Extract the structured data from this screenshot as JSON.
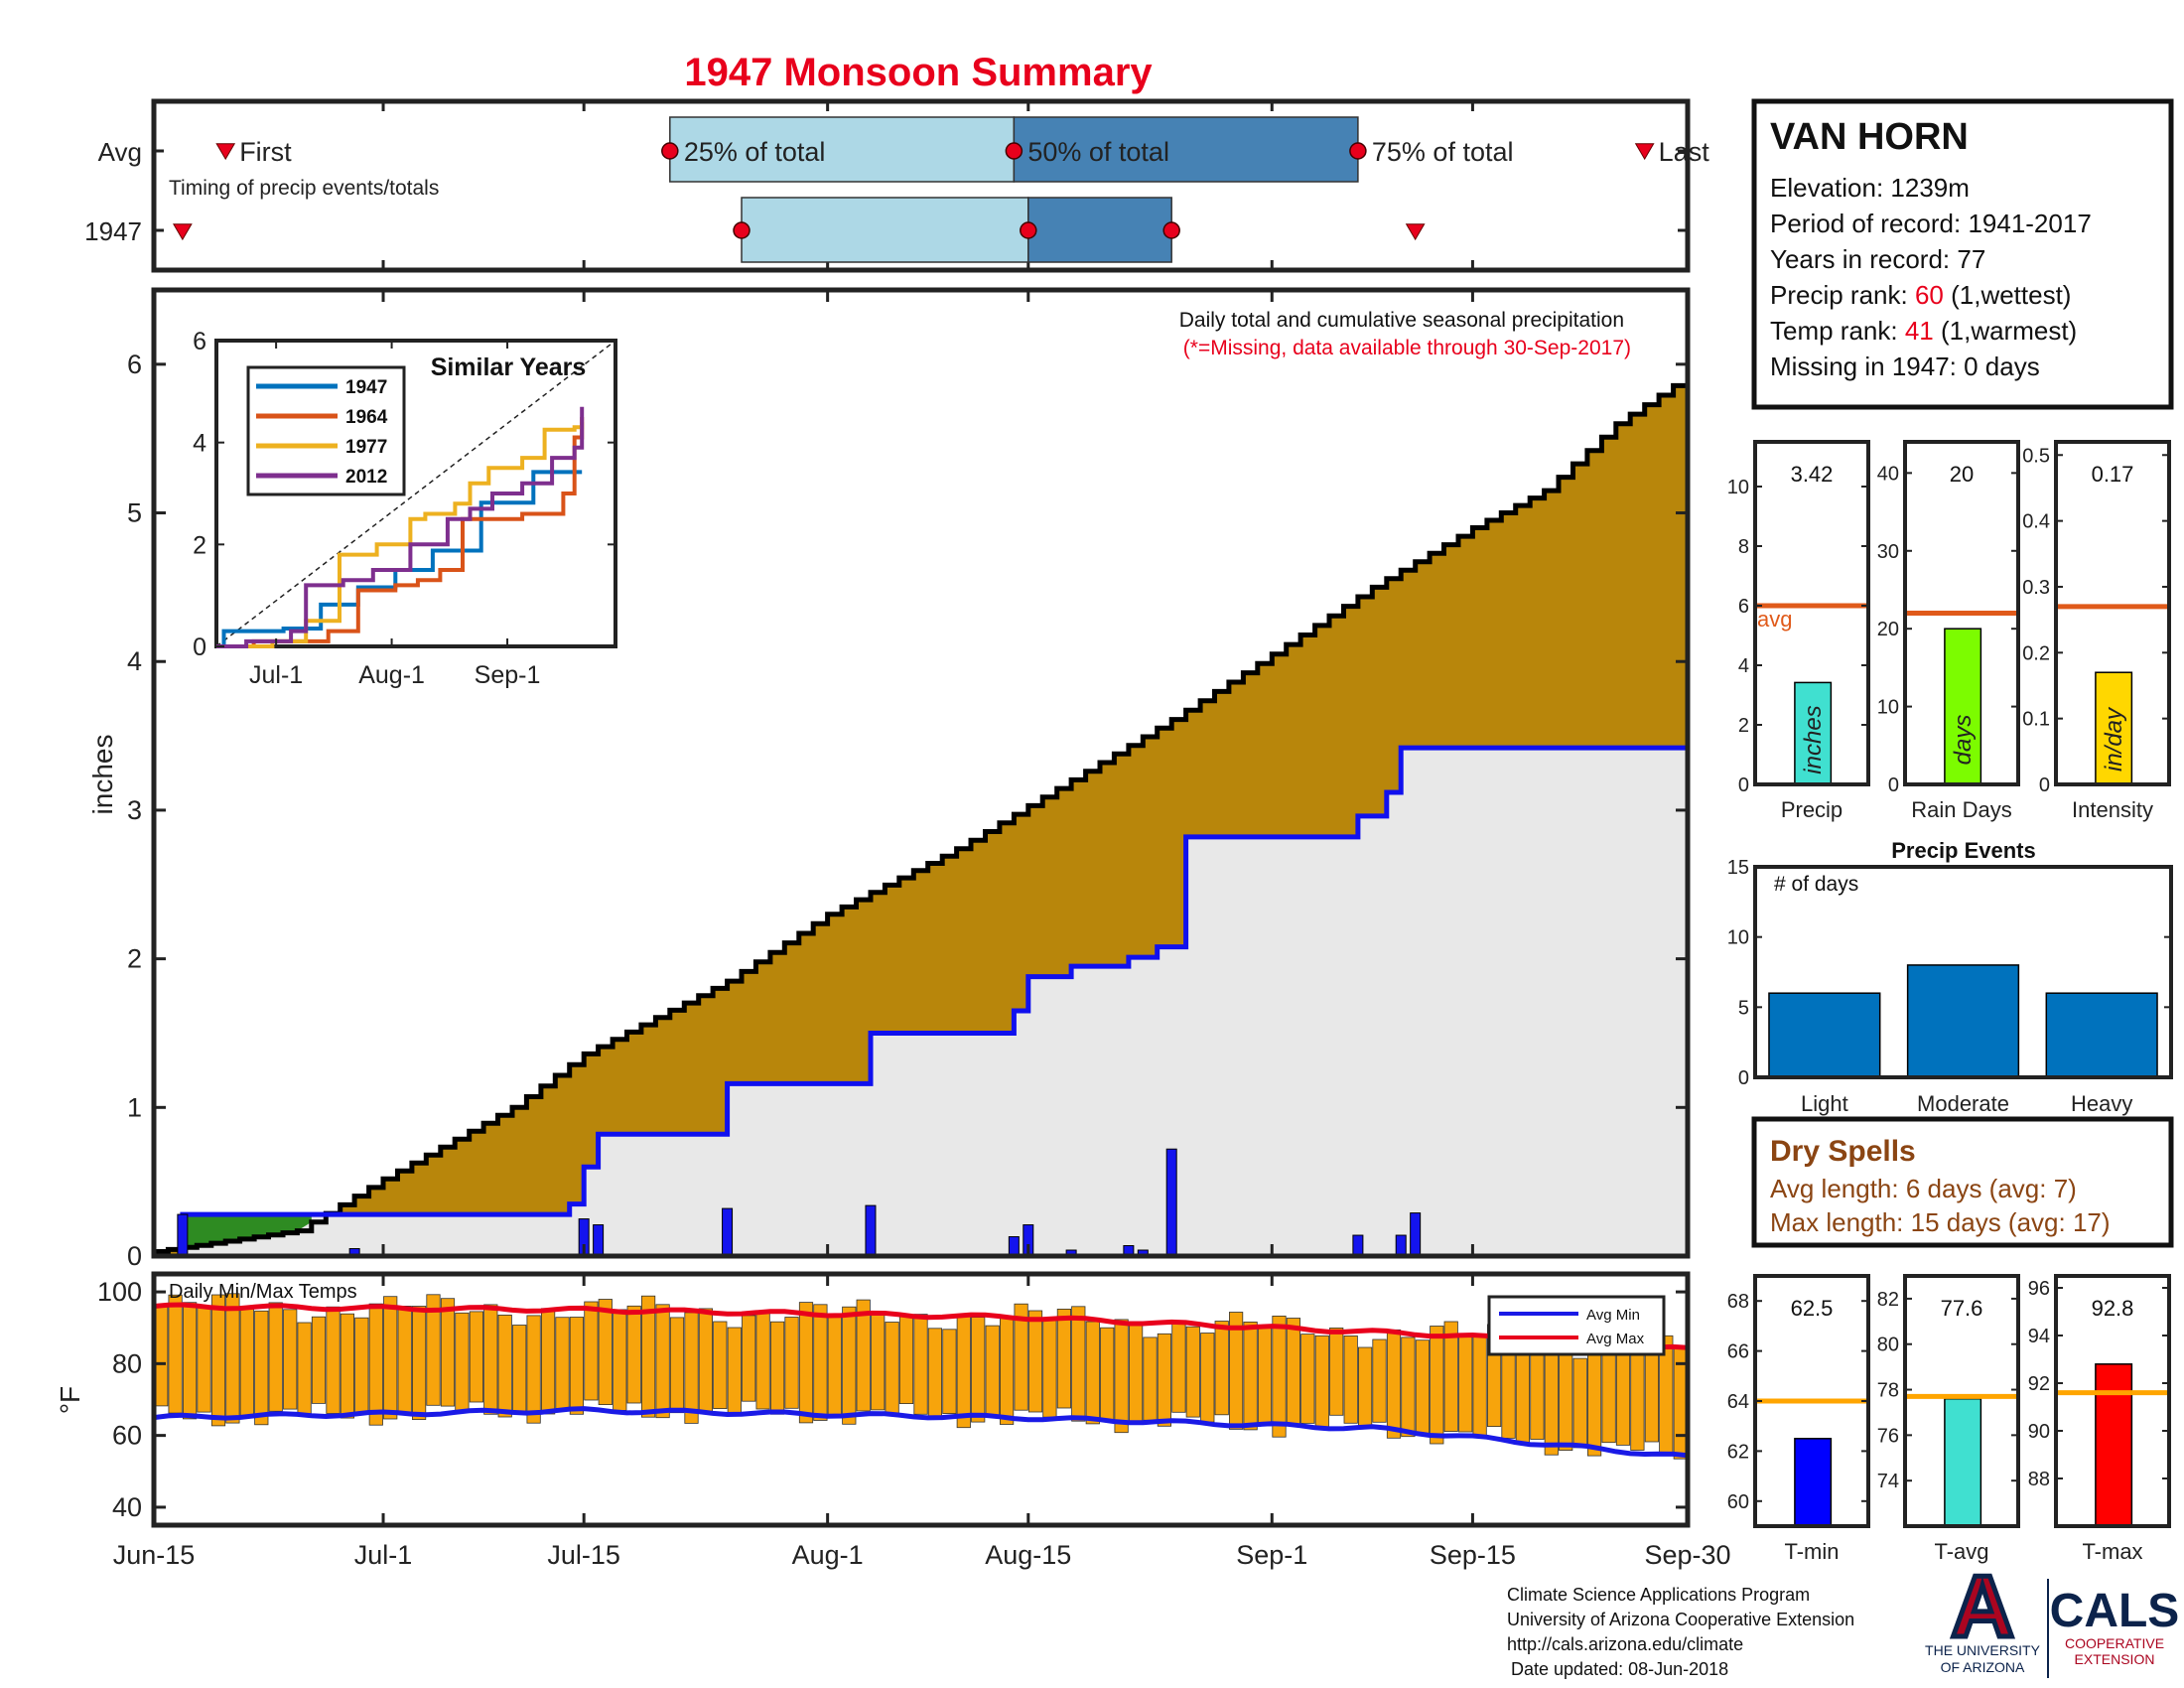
{
  "title": "1947 Monsoon Summary",
  "colors": {
    "title": "#e8001c",
    "light_blue": "#add8e6",
    "dark_blue": "#4682b4",
    "marker": "#e8001c",
    "cum_avg_fill": "#b8860b",
    "cum_year_fill": "#e8e8e8",
    "year_line": "#1010ee",
    "daily_bar": "#1414ee",
    "temp_bar": "#f7a40c",
    "avg_min_line": "#1a1ae6",
    "avg_max_line": "#e8001c",
    "avg_ref_line": "#e05a1a",
    "precip_bar": "#40e0d0",
    "raindays_bar": "#7cfc00",
    "intensity_bar": "#ffd700",
    "event_bar": "#0072bd",
    "tmin_bar": "#0000ff",
    "tavg_bar": "#40e0d0",
    "tmax_bar": "#ff0000",
    "temp_avg_line": "#ffa500",
    "dry_text": "#8b4513"
  },
  "timing": {
    "row_labels": [
      "Avg",
      "1947"
    ],
    "first_label": "First",
    "last_label": "Last",
    "p25_label": "25% of total",
    "p50_label": "50% of total",
    "p75_label": "75% of total",
    "note": "Timing of precip events/totals",
    "avg": {
      "first": "2017-06-20",
      "p25": "2017-07-21",
      "p50": "2017-08-14",
      "p75": "2017-09-07",
      "last": "2017-09-27"
    },
    "year": {
      "first": "2017-06-17",
      "p25": "2017-07-26",
      "p50": "2017-08-15",
      "p75": "2017-08-25",
      "last": "2017-09-11"
    }
  },
  "station": {
    "name": "VAN HORN",
    "elevation_label": "Elevation: ",
    "elevation": "1239m",
    "period_label": "Period of record: ",
    "period": "1941-2017",
    "years_label": "Years in record: ",
    "years": "77",
    "precip_rank_label": "Precip rank: ",
    "precip_rank": "60",
    "precip_rank_note": " (1,wettest)",
    "temp_rank_label": "Temp rank: ",
    "temp_rank": "41",
    "temp_rank_note": " (1,warmest)",
    "missing_label": "Missing in 1947: ",
    "missing": "0 days"
  },
  "chart_data": [
    {
      "name": "cumulative",
      "type": "area",
      "ylabel": "inches",
      "ylim": [
        0,
        6.5
      ],
      "yticks": [
        0,
        1,
        2,
        3,
        4,
        5,
        6
      ],
      "xlim": [
        "2017-06-15",
        "2017-09-30"
      ],
      "xticks": [
        {
          "date": "2017-06-15",
          "label": "Jun-15"
        },
        {
          "date": "2017-07-01",
          "label": "Jul-1"
        },
        {
          "date": "2017-07-15",
          "label": "Jul-15"
        },
        {
          "date": "2017-08-01",
          "label": "Aug-1"
        },
        {
          "date": "2017-08-15",
          "label": "Aug-15"
        },
        {
          "date": "2017-09-01",
          "label": "Sep-1"
        },
        {
          "date": "2017-09-15",
          "label": "Sep-15"
        },
        {
          "date": "2017-09-30",
          "label": "Sep-30"
        }
      ],
      "note": "Daily total and cumulative seasonal precipitation",
      "missing_note": "(*=Missing, data available through 30-Sep-2017)",
      "avg_cumulative": [
        [
          "2017-06-15",
          0.03
        ],
        [
          "2017-06-25",
          0.17
        ],
        [
          "2017-07-01",
          0.52
        ],
        [
          "2017-07-10",
          1.0
        ],
        [
          "2017-07-15",
          1.36
        ],
        [
          "2017-07-25",
          1.85
        ],
        [
          "2017-08-01",
          2.3
        ],
        [
          "2017-08-10",
          2.74
        ],
        [
          "2017-08-15",
          3.03
        ],
        [
          "2017-08-25",
          3.61
        ],
        [
          "2017-09-01",
          4.05
        ],
        [
          "2017-09-08",
          4.5
        ],
        [
          "2017-09-15",
          4.9
        ],
        [
          "2017-09-20",
          5.15
        ],
        [
          "2017-09-25",
          5.6
        ],
        [
          "2017-09-30",
          5.92
        ]
      ],
      "year_cumulative": [
        [
          "2017-06-15",
          0.0
        ],
        [
          "2017-06-17",
          0.28
        ],
        [
          "2017-07-14",
          0.35
        ],
        [
          "2017-07-15",
          0.6
        ],
        [
          "2017-07-16",
          0.82
        ],
        [
          "2017-07-24",
          0.82
        ],
        [
          "2017-07-25",
          1.16
        ],
        [
          "2017-08-04",
          1.5
        ],
        [
          "2017-08-14",
          1.65
        ],
        [
          "2017-08-15",
          1.88
        ],
        [
          "2017-08-18",
          1.95
        ],
        [
          "2017-08-22",
          2.01
        ],
        [
          "2017-08-24",
          2.08
        ],
        [
          "2017-08-26",
          2.82
        ],
        [
          "2017-09-05",
          2.82
        ],
        [
          "2017-09-07",
          2.96
        ],
        [
          "2017-09-09",
          3.12
        ],
        [
          "2017-09-10",
          3.42
        ],
        [
          "2017-09-30",
          3.42
        ]
      ],
      "daily_precip": [
        [
          "2017-06-17",
          0.28
        ],
        [
          "2017-06-29",
          0.05
        ],
        [
          "2017-07-15",
          0.25
        ],
        [
          "2017-07-16",
          0.21
        ],
        [
          "2017-07-25",
          0.32
        ],
        [
          "2017-08-04",
          0.34
        ],
        [
          "2017-08-14",
          0.13
        ],
        [
          "2017-08-15",
          0.21
        ],
        [
          "2017-08-18",
          0.04
        ],
        [
          "2017-08-22",
          0.07
        ],
        [
          "2017-08-23",
          0.04
        ],
        [
          "2017-08-25",
          0.72
        ],
        [
          "2017-09-07",
          0.14
        ],
        [
          "2017-09-10",
          0.14
        ],
        [
          "2017-09-11",
          0.29
        ]
      ]
    },
    {
      "name": "similar-years",
      "type": "line",
      "title": "Similar Years",
      "ylim": [
        0,
        6
      ],
      "yticks": [
        0,
        2,
        4,
        6
      ],
      "xticks": [
        "Jul-1",
        "Aug-1",
        "Sep-1"
      ],
      "series": [
        {
          "name": "1947",
          "color": "#0072bd",
          "points": [
            [
              0,
              0
            ],
            [
              2,
              0.3
            ],
            [
              18,
              0.35
            ],
            [
              28,
              0.82
            ],
            [
              38,
              1.16
            ],
            [
              48,
              1.5
            ],
            [
              58,
              1.88
            ],
            [
              71,
              2.82
            ],
            [
              85,
              3.42
            ],
            [
              98,
              3.42
            ]
          ]
        },
        {
          "name": "1964",
          "color": "#d95319",
          "points": [
            [
              0,
              0
            ],
            [
              10,
              0.1
            ],
            [
              30,
              0.3
            ],
            [
              38,
              1.1
            ],
            [
              48,
              1.2
            ],
            [
              54,
              1.3
            ],
            [
              60,
              1.5
            ],
            [
              66,
              2.5
            ],
            [
              82,
              2.6
            ],
            [
              93,
              3.0
            ],
            [
              96,
              4.1
            ],
            [
              98,
              4.5
            ]
          ]
        },
        {
          "name": "1977",
          "color": "#edb120",
          "points": [
            [
              0,
              0
            ],
            [
              15,
              0.1
            ],
            [
              24,
              0.5
            ],
            [
              33,
              1.8
            ],
            [
              43,
              2.0
            ],
            [
              52,
              2.5
            ],
            [
              56,
              2.6
            ],
            [
              64,
              2.8
            ],
            [
              68,
              3.2
            ],
            [
              73,
              3.5
            ],
            [
              82,
              3.7
            ],
            [
              88,
              4.25
            ],
            [
              96,
              4.3
            ],
            [
              98,
              4.4
            ]
          ]
        },
        {
          "name": "2012",
          "color": "#7e2f8e",
          "points": [
            [
              0,
              0
            ],
            [
              8,
              0.1
            ],
            [
              20,
              0.3
            ],
            [
              24,
              1.2
            ],
            [
              34,
              1.3
            ],
            [
              42,
              1.5
            ],
            [
              52,
              2.0
            ],
            [
              62,
              2.5
            ],
            [
              68,
              2.7
            ],
            [
              74,
              3.0
            ],
            [
              82,
              3.2
            ],
            [
              90,
              3.7
            ],
            [
              96,
              3.9
            ],
            [
              98,
              4.7
            ]
          ]
        }
      ]
    },
    {
      "name": "temps",
      "type": "bar",
      "title": "Daily Min/Max Temps",
      "ylabel": "°F",
      "ylim": [
        35,
        105
      ],
      "yticks": [
        40,
        60,
        80,
        100
      ],
      "legend": [
        "Avg Min",
        "Avg Max"
      ],
      "avg_max": [
        [
          0,
          96
        ],
        [
          30,
          95
        ],
        [
          60,
          93
        ],
        [
          90,
          88
        ],
        [
          107,
          84
        ]
      ],
      "avg_min": [
        [
          0,
          65
        ],
        [
          30,
          67
        ],
        [
          60,
          65
        ],
        [
          85,
          62
        ],
        [
          107,
          54
        ]
      ]
    },
    {
      "name": "precip-summary",
      "type": "bar",
      "panels": [
        {
          "category": "Precip",
          "value": 3.42,
          "value_label": "3.42",
          "unit": "inches",
          "avg": 6.0,
          "avg_label": "avg",
          "ylim": [
            0,
            11.5
          ],
          "yticks": [
            0,
            2,
            4,
            6,
            8,
            10
          ]
        },
        {
          "category": "Rain Days",
          "value": 20,
          "value_label": "20",
          "unit": "days",
          "avg": 22,
          "ylim": [
            0,
            44
          ],
          "yticks": [
            0,
            10,
            20,
            30,
            40
          ]
        },
        {
          "category": "Intensity",
          "value": 0.17,
          "value_label": "0.17",
          "unit": "in/day",
          "avg": 0.27,
          "ylim": [
            0,
            0.52
          ],
          "yticks": [
            0,
            0.1,
            0.2,
            0.3,
            0.4,
            0.5
          ]
        }
      ]
    },
    {
      "name": "precip-events",
      "type": "bar",
      "title": "Precip Events",
      "ylabel": "# of days",
      "categories": [
        "Light",
        "Moderate",
        "Heavy"
      ],
      "values": [
        6,
        8,
        6
      ],
      "ylim": [
        0,
        15
      ],
      "yticks": [
        0,
        5,
        10,
        15
      ]
    },
    {
      "name": "temp-summary",
      "type": "bar",
      "panels": [
        {
          "category": "T-min",
          "value": 62.5,
          "value_label": "62.5",
          "avg": 64.0,
          "ylim": [
            59,
            69
          ],
          "yticks": [
            60,
            62,
            64,
            66,
            68
          ]
        },
        {
          "category": "T-avg",
          "value": 77.6,
          "value_label": "77.6",
          "avg": 77.7,
          "ylim": [
            72,
            83
          ],
          "yticks": [
            74,
            76,
            78,
            80,
            82
          ]
        },
        {
          "category": "T-max",
          "value": 92.8,
          "value_label": "92.8",
          "avg": 91.6,
          "ylim": [
            86,
            96.5
          ],
          "yticks": [
            88,
            90,
            92,
            94,
            96
          ]
        }
      ]
    }
  ],
  "dry_spells": {
    "title": "Dry Spells",
    "avg_length": "Avg length: 6 days (avg: 7)",
    "max_length": "Max length: 15 days (avg: 17)"
  },
  "footer": {
    "line1": "Climate Science Applications Program",
    "line2": "University of Arizona Cooperative Extension",
    "line3": "http://cals.arizona.edu/climate",
    "line4": "Date updated: 08-Jun-2018"
  },
  "logos": {
    "ua_letter": "A",
    "ua_line1": "THE UNIVERSITY",
    "ua_line2": "OF ARIZONA",
    "cals": "CALS",
    "cals_line1": "COOPERATIVE",
    "cals_line2": "EXTENSION"
  }
}
